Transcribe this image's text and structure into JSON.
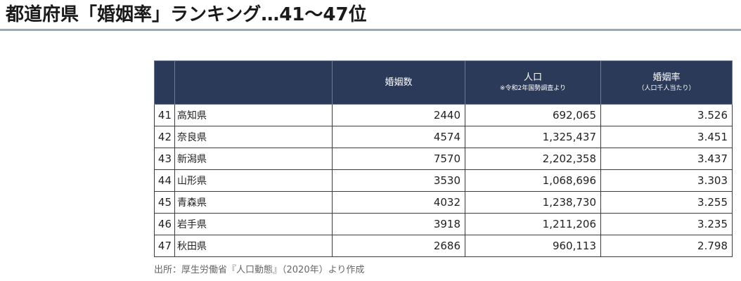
{
  "title": "都道府県「婚姻率」ランキング…41〜47位",
  "colors": {
    "header_background": "#2c3a5a",
    "header_text": "#ffffff",
    "title_rule": "#9aa7b5",
    "grid_line": "#3c3c3c"
  },
  "table": {
    "header": {
      "marriages": {
        "label": "婚姻数"
      },
      "population": {
        "label": "人口",
        "note": "※令和2年国勢調査より"
      },
      "rate": {
        "label": "婚姻率",
        "note": "（人口千人当たり）"
      }
    },
    "rows": [
      {
        "rank": "41",
        "prefecture": "高知県",
        "marriages": "2440",
        "population": "692,065",
        "rate": "3.526"
      },
      {
        "rank": "42",
        "prefecture": "奈良県",
        "marriages": "4574",
        "population": "1,325,437",
        "rate": "3.451"
      },
      {
        "rank": "43",
        "prefecture": "新潟県",
        "marriages": "7570",
        "population": "2,202,358",
        "rate": "3.437"
      },
      {
        "rank": "44",
        "prefecture": "山形県",
        "marriages": "3530",
        "population": "1,068,696",
        "rate": "3.303"
      },
      {
        "rank": "45",
        "prefecture": "青森県",
        "marriages": "4032",
        "population": "1,238,730",
        "rate": "3.255"
      },
      {
        "rank": "46",
        "prefecture": "岩手県",
        "marriages": "3918",
        "population": "1,211,206",
        "rate": "3.235"
      },
      {
        "rank": "47",
        "prefecture": "秋田県",
        "marriages": "2686",
        "population": "960,113",
        "rate": "2.798"
      }
    ]
  },
  "source": "出所：厚生労働省『人口動態』（2020年）より作成"
}
